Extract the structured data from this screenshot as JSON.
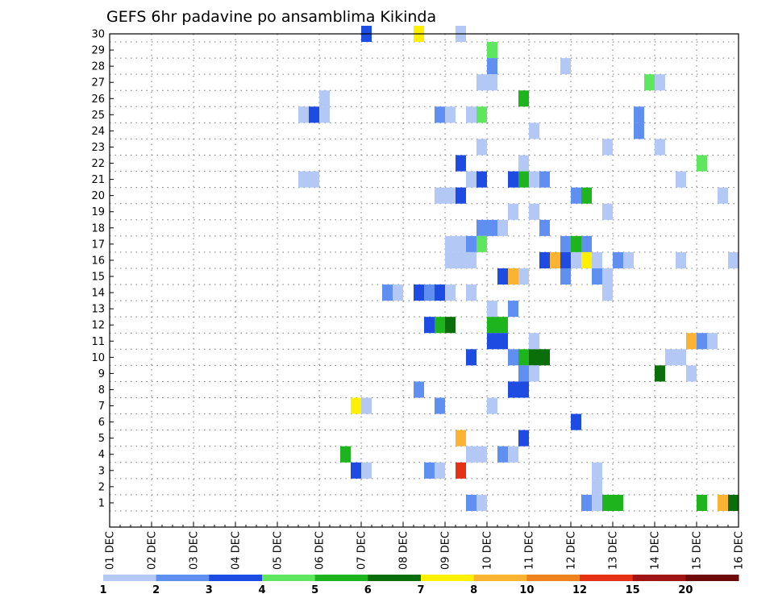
{
  "chart_data": {
    "type": "heatmap",
    "title": "GEFS 6hr padavine po ansamblima Kikinda",
    "xlabel": "",
    "ylabel": "",
    "x_tick_labels": [
      "01 DEC",
      "02 DEC",
      "03 DEC",
      "04 DEC",
      "05 DEC",
      "06 DEC",
      "07 DEC",
      "08 DEC",
      "09 DEC",
      "10 DEC",
      "11 DEC",
      "12 DEC",
      "13 DEC",
      "14 DEC",
      "15 DEC",
      "16 DEC"
    ],
    "y_tick_labels": [
      "1",
      "2",
      "3",
      "4",
      "5",
      "6",
      "7",
      "8",
      "9",
      "10",
      "11",
      "12",
      "13",
      "14",
      "15",
      "16",
      "17",
      "18",
      "19",
      "20",
      "21",
      "22",
      "23",
      "24",
      "25",
      "26",
      "27",
      "28",
      "29",
      "30"
    ],
    "xlim": [
      0,
      60
    ],
    "ylim": [
      0,
      30
    ],
    "grid": true,
    "colorbar": {
      "labels": [
        "1",
        "2",
        "3",
        "4",
        "5",
        "6",
        "7",
        "8",
        "10",
        "12",
        "15",
        "20"
      ],
      "colors": [
        "#b4c8f5",
        "#5f8ff0",
        "#1e4be1",
        "#5fe65f",
        "#1eb41e",
        "#0a6e0a",
        "#fff000",
        "#fab432",
        "#f0821e",
        "#e63214",
        "#a01414",
        "#6e0a0a"
      ]
    },
    "levels_note": "",
    "cells": [
      [
        25,
        30,
        3
      ],
      [
        30,
        30,
        7
      ],
      [
        34,
        30,
        1
      ],
      [
        37,
        29,
        4
      ],
      [
        37,
        28,
        2
      ],
      [
        44,
        28,
        1
      ],
      [
        36,
        27,
        1
      ],
      [
        37,
        27,
        1
      ],
      [
        52,
        27,
        4
      ],
      [
        53,
        27,
        1
      ],
      [
        21,
        26,
        1
      ],
      [
        40,
        26,
        5
      ],
      [
        19,
        25,
        1
      ],
      [
        20,
        25,
        3
      ],
      [
        21,
        25,
        1
      ],
      [
        32,
        25,
        2
      ],
      [
        33,
        25,
        1
      ],
      [
        35,
        25,
        1
      ],
      [
        36,
        25,
        4
      ],
      [
        51,
        25,
        2
      ],
      [
        51,
        24,
        2
      ],
      [
        41,
        24,
        1
      ],
      [
        36,
        23,
        1
      ],
      [
        48,
        23,
        1
      ],
      [
        53,
        23,
        1
      ],
      [
        34,
        22,
        3
      ],
      [
        40,
        22,
        1
      ],
      [
        57,
        22,
        4
      ],
      [
        19,
        21,
        1
      ],
      [
        20,
        21,
        1
      ],
      [
        35,
        21,
        1
      ],
      [
        36,
        21,
        3
      ],
      [
        39,
        21,
        3
      ],
      [
        40,
        21,
        5
      ],
      [
        41,
        21,
        1
      ],
      [
        42,
        21,
        2
      ],
      [
        55,
        21,
        1
      ],
      [
        32,
        20,
        1
      ],
      [
        33,
        20,
        1
      ],
      [
        34,
        20,
        3
      ],
      [
        45,
        20,
        2
      ],
      [
        46,
        20,
        5
      ],
      [
        59,
        20,
        1
      ],
      [
        39,
        19,
        1
      ],
      [
        41,
        19,
        1
      ],
      [
        48,
        19,
        1
      ],
      [
        36,
        18,
        2
      ],
      [
        37,
        18,
        2
      ],
      [
        38,
        18,
        1
      ],
      [
        42,
        18,
        2
      ],
      [
        33,
        17,
        1
      ],
      [
        34,
        17,
        1
      ],
      [
        35,
        17,
        2
      ],
      [
        36,
        17,
        4
      ],
      [
        44,
        17,
        2
      ],
      [
        45,
        17,
        5
      ],
      [
        46,
        17,
        2
      ],
      [
        33,
        16,
        1
      ],
      [
        34,
        16,
        1
      ],
      [
        35,
        16,
        1
      ],
      [
        42,
        16,
        3
      ],
      [
        43,
        16,
        8
      ],
      [
        44,
        16,
        3
      ],
      [
        45,
        16,
        1
      ],
      [
        46,
        16,
        7
      ],
      [
        47,
        16,
        1
      ],
      [
        49,
        16,
        2
      ],
      [
        50,
        16,
        1
      ],
      [
        55,
        16,
        1
      ],
      [
        60,
        16,
        1
      ],
      [
        38,
        15,
        3
      ],
      [
        39,
        15,
        8
      ],
      [
        40,
        15,
        1
      ],
      [
        44,
        15,
        2
      ],
      [
        47,
        15,
        2
      ],
      [
        48,
        15,
        1
      ],
      [
        27,
        14,
        2
      ],
      [
        28,
        14,
        1
      ],
      [
        30,
        14,
        3
      ],
      [
        31,
        14,
        2
      ],
      [
        32,
        14,
        3
      ],
      [
        33,
        14,
        1
      ],
      [
        35,
        14,
        1
      ],
      [
        48,
        14,
        1
      ],
      [
        37,
        13,
        1
      ],
      [
        39,
        13,
        2
      ],
      [
        31,
        12,
        3
      ],
      [
        32,
        12,
        5
      ],
      [
        33,
        12,
        6
      ],
      [
        37,
        12,
        5
      ],
      [
        38,
        12,
        5
      ],
      [
        37,
        11,
        3
      ],
      [
        38,
        11,
        3
      ],
      [
        41,
        11,
        1
      ],
      [
        56,
        11,
        8
      ],
      [
        57,
        11,
        2
      ],
      [
        58,
        11,
        1
      ],
      [
        35,
        10,
        3
      ],
      [
        39,
        10,
        2
      ],
      [
        40,
        10,
        5
      ],
      [
        41,
        10,
        6
      ],
      [
        42,
        10,
        6
      ],
      [
        54,
        10,
        1
      ],
      [
        55,
        10,
        1
      ],
      [
        40,
        9,
        2
      ],
      [
        41,
        9,
        1
      ],
      [
        53,
        9,
        6
      ],
      [
        56,
        9,
        1
      ],
      [
        30,
        8,
        2
      ],
      [
        39,
        8,
        3
      ],
      [
        40,
        8,
        3
      ],
      [
        24,
        7,
        7
      ],
      [
        25,
        7,
        1
      ],
      [
        32,
        7,
        2
      ],
      [
        37,
        7,
        1
      ],
      [
        45,
        6,
        3
      ],
      [
        34,
        5,
        8
      ],
      [
        40,
        5,
        3
      ],
      [
        23,
        4,
        5
      ],
      [
        35,
        4,
        1
      ],
      [
        36,
        4,
        1
      ],
      [
        38,
        4,
        2
      ],
      [
        39,
        4,
        1
      ],
      [
        24,
        3,
        3
      ],
      [
        25,
        3,
        1
      ],
      [
        31,
        3,
        2
      ],
      [
        32,
        3,
        1
      ],
      [
        34,
        3,
        10
      ],
      [
        47,
        3,
        1
      ],
      [
        47,
        2,
        1
      ],
      [
        47,
        1,
        1
      ],
      [
        35,
        1,
        2
      ],
      [
        36,
        1,
        1
      ],
      [
        46,
        1,
        2
      ],
      [
        48,
        1,
        5
      ],
      [
        49,
        1,
        5
      ],
      [
        57,
        1,
        5
      ],
      [
        59,
        1,
        8
      ],
      [
        60,
        1,
        6
      ]
    ]
  }
}
